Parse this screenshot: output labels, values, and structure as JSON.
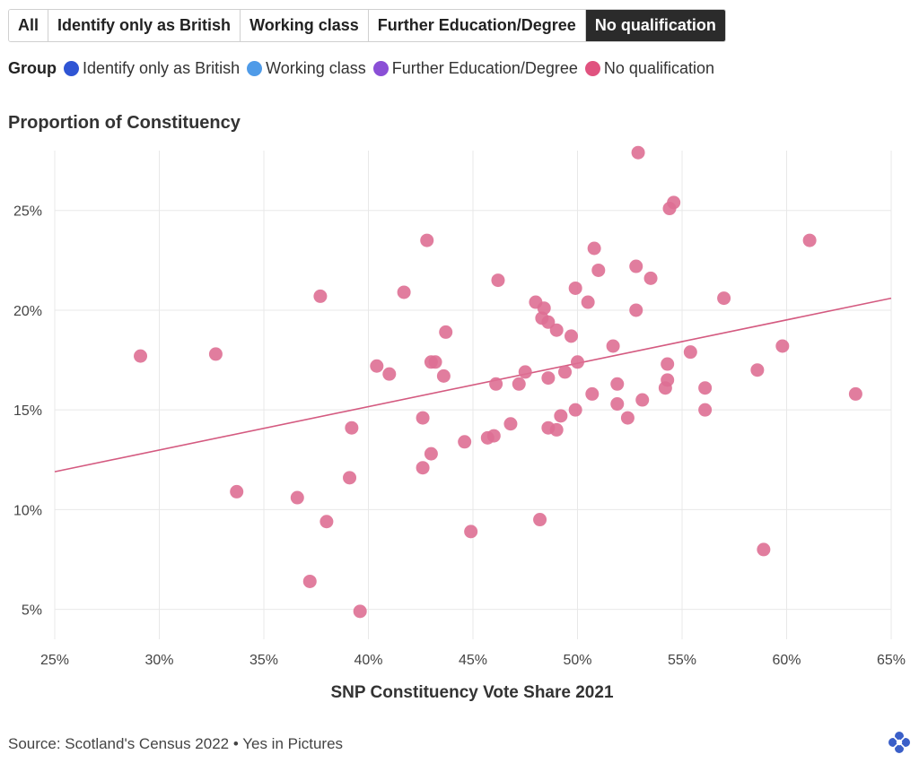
{
  "tabs": [
    {
      "label": "All",
      "active": false
    },
    {
      "label": "Identify only as British",
      "active": false
    },
    {
      "label": "Working class",
      "active": false
    },
    {
      "label": "Further Education/Degree",
      "active": false
    },
    {
      "label": "No qualification",
      "active": true
    }
  ],
  "legend": {
    "title": "Group",
    "items": [
      {
        "label": "Identify only as British",
        "color": "#2f55d4"
      },
      {
        "label": "Working class",
        "color": "#4f9be8"
      },
      {
        "label": "Further Education/Degree",
        "color": "#8a4fd6"
      },
      {
        "label": "No qualification",
        "color": "#e0527f"
      }
    ]
  },
  "footer": {
    "source": "Source: Scotland's Census 2022 • Yes in Pictures"
  },
  "chart_data": {
    "type": "scatter",
    "subtitle": "Proportion of Constituency",
    "xlabel": "SNP Constituency Vote Share 2021",
    "ylabel": "",
    "xlim": [
      25,
      65
    ],
    "ylim": [
      3.5,
      28
    ],
    "xticks": [
      25,
      30,
      35,
      40,
      45,
      50,
      55,
      60,
      65
    ],
    "yticks": [
      5,
      10,
      15,
      20,
      25
    ],
    "xtick_labels": [
      "25%",
      "30%",
      "35%",
      "40%",
      "45%",
      "50%",
      "55%",
      "60%",
      "65%"
    ],
    "ytick_labels": [
      "5%",
      "10%",
      "15%",
      "20%",
      "25%"
    ],
    "grid": true,
    "point_color": "#de6f93",
    "trend_color": "#d45a80",
    "trendline": {
      "x": [
        25,
        65
      ],
      "y": [
        11.9,
        20.6
      ]
    },
    "series": [
      {
        "name": "No qualification",
        "points": [
          [
            29.1,
            17.7
          ],
          [
            32.7,
            17.8
          ],
          [
            33.7,
            10.9
          ],
          [
            36.6,
            10.6
          ],
          [
            37.2,
            6.4
          ],
          [
            37.7,
            20.7
          ],
          [
            38.0,
            9.4
          ],
          [
            39.1,
            11.6
          ],
          [
            39.2,
            14.1
          ],
          [
            39.6,
            4.9
          ],
          [
            40.4,
            17.2
          ],
          [
            41.0,
            16.8
          ],
          [
            41.7,
            20.9
          ],
          [
            42.6,
            12.1
          ],
          [
            42.6,
            14.6
          ],
          [
            42.8,
            23.5
          ],
          [
            43.0,
            12.8
          ],
          [
            43.0,
            17.4
          ],
          [
            43.2,
            17.4
          ],
          [
            43.6,
            16.7
          ],
          [
            43.7,
            18.9
          ],
          [
            44.6,
            13.4
          ],
          [
            44.9,
            8.9
          ],
          [
            45.7,
            13.6
          ],
          [
            46.0,
            13.7
          ],
          [
            46.1,
            16.3
          ],
          [
            46.2,
            21.5
          ],
          [
            46.8,
            14.3
          ],
          [
            47.2,
            16.3
          ],
          [
            47.5,
            16.9
          ],
          [
            48.0,
            20.4
          ],
          [
            48.2,
            9.5
          ],
          [
            48.3,
            19.6
          ],
          [
            48.4,
            20.1
          ],
          [
            48.6,
            19.4
          ],
          [
            48.6,
            16.6
          ],
          [
            48.6,
            14.1
          ],
          [
            49.0,
            19.0
          ],
          [
            49.0,
            14.0
          ],
          [
            49.2,
            14.7
          ],
          [
            49.4,
            16.9
          ],
          [
            49.7,
            18.7
          ],
          [
            49.9,
            21.1
          ],
          [
            49.9,
            15.0
          ],
          [
            50.0,
            17.4
          ],
          [
            50.5,
            20.4
          ],
          [
            50.7,
            15.8
          ],
          [
            50.8,
            23.1
          ],
          [
            51.0,
            22.0
          ],
          [
            51.7,
            18.2
          ],
          [
            51.9,
            16.3
          ],
          [
            51.9,
            15.3
          ],
          [
            52.4,
            14.6
          ],
          [
            52.8,
            22.2
          ],
          [
            52.8,
            20.0
          ],
          [
            52.9,
            27.9
          ],
          [
            53.1,
            15.5
          ],
          [
            53.5,
            21.6
          ],
          [
            54.2,
            16.1
          ],
          [
            54.3,
            16.5
          ],
          [
            54.3,
            17.3
          ],
          [
            54.4,
            25.1
          ],
          [
            54.6,
            25.4
          ],
          [
            55.4,
            17.9
          ],
          [
            56.1,
            16.1
          ],
          [
            56.1,
            15.0
          ],
          [
            57.0,
            20.6
          ],
          [
            58.6,
            17.0
          ],
          [
            58.9,
            8.0
          ],
          [
            59.8,
            18.2
          ],
          [
            61.1,
            23.5
          ],
          [
            63.3,
            15.8
          ]
        ]
      }
    ]
  }
}
